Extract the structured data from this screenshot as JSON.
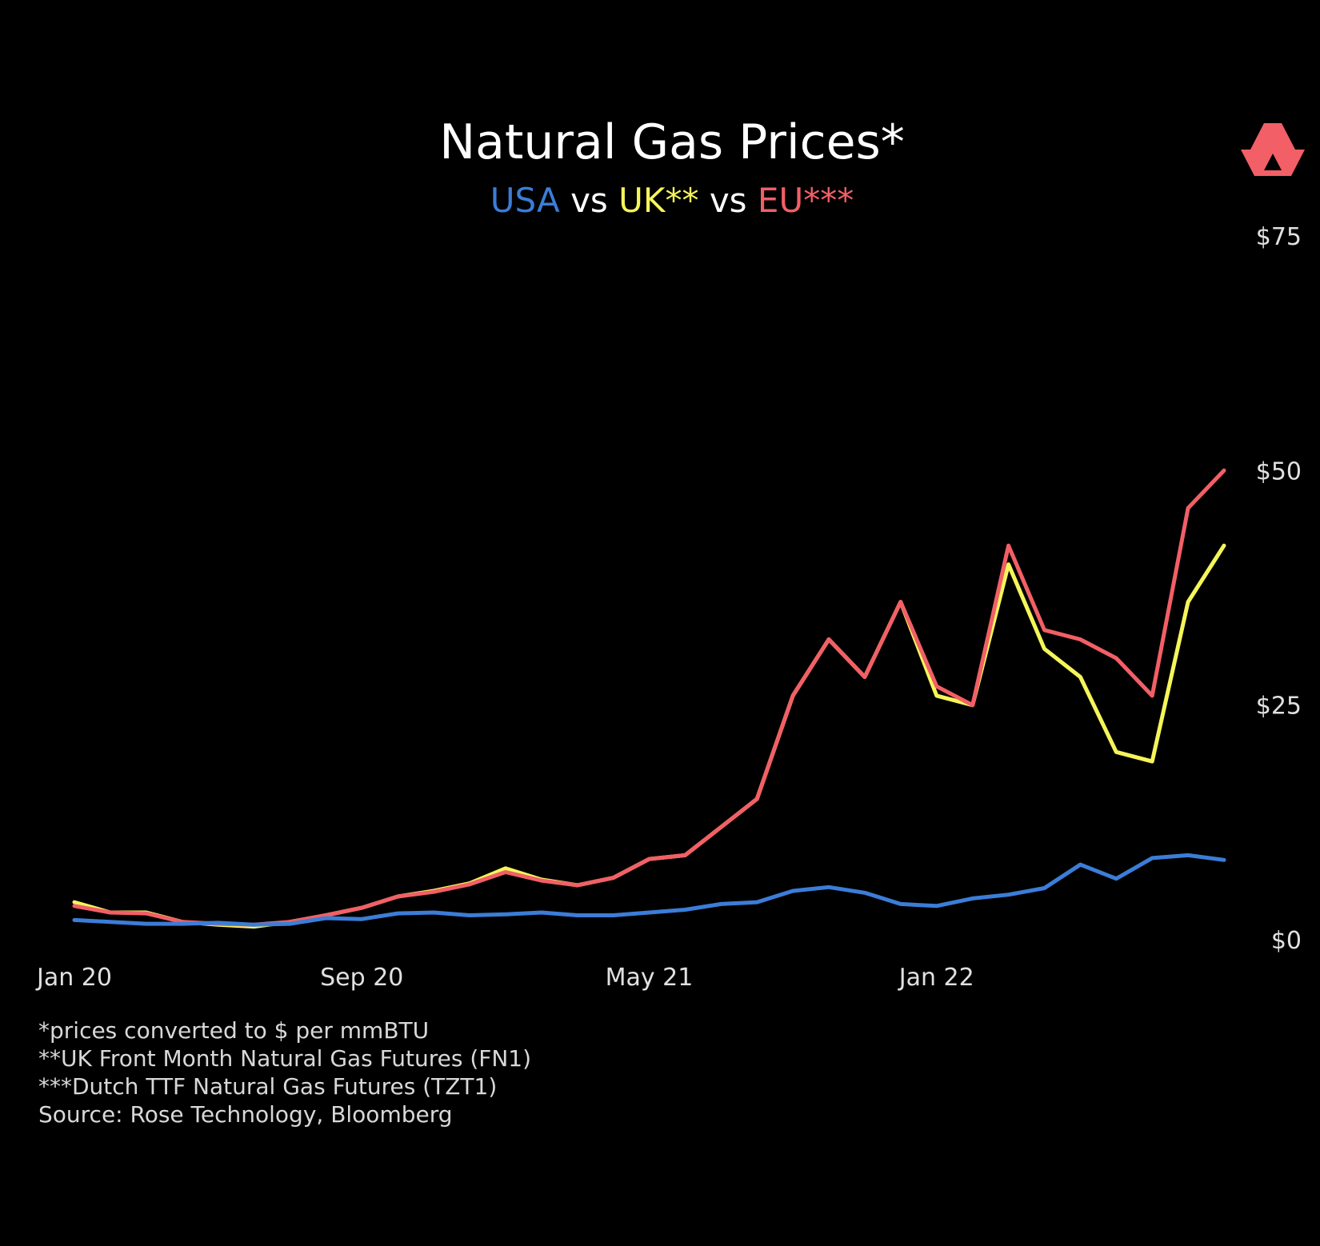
{
  "chart_data": {
    "type": "line",
    "title": "Natural Gas Prices*",
    "subtitle": [
      {
        "text": "USA",
        "color": "#3b7dd8"
      },
      {
        "text": " vs ",
        "color": "#ffffff"
      },
      {
        "text": "UK**",
        "color": "#f5f55a"
      },
      {
        "text": " vs ",
        "color": "#ffffff"
      },
      {
        "text": "EU***",
        "color": "#f25f66"
      }
    ],
    "x_axis": {
      "ticks": [
        "Jan 20",
        "Sep 20",
        "May 21",
        "Jan 22"
      ],
      "range": [
        "2020-01",
        "2022-09"
      ]
    },
    "y_axis": {
      "position": "right",
      "range": [
        0,
        75
      ],
      "ticks": [
        {
          "value": 0,
          "label": "$0"
        },
        {
          "value": 25,
          "label": "$25"
        },
        {
          "value": 50,
          "label": "$50"
        },
        {
          "value": 75,
          "label": "$75"
        }
      ]
    },
    "grid": false,
    "x": [
      "2020-01",
      "2020-02",
      "2020-03",
      "2020-04",
      "2020-05",
      "2020-06",
      "2020-07",
      "2020-08",
      "2020-09",
      "2020-10",
      "2020-11",
      "2020-12",
      "2021-01",
      "2021-02",
      "2021-03",
      "2021-04",
      "2021-05",
      "2021-06",
      "2021-07",
      "2021-08",
      "2021-09",
      "2021-10",
      "2021-11",
      "2021-12",
      "2022-01",
      "2022-02",
      "2022-03",
      "2022-04",
      "2022-05",
      "2022-06",
      "2022-07",
      "2022-08",
      "2022-09"
    ],
    "series": [
      {
        "name": "USA",
        "color": "#3b7dd8",
        "values": [
          2.1,
          1.9,
          1.7,
          1.7,
          1.8,
          1.6,
          1.7,
          2.3,
          2.2,
          2.8,
          2.9,
          2.6,
          2.7,
          2.9,
          2.6,
          2.6,
          2.9,
          3.2,
          3.8,
          4.0,
          5.2,
          5.6,
          5.0,
          3.8,
          3.6,
          4.4,
          4.8,
          5.5,
          8.0,
          6.5,
          8.7,
          9.0,
          8.5
        ]
      },
      {
        "name": "UK**",
        "color": "#f5f55a",
        "values": [
          4.0,
          2.9,
          2.9,
          1.9,
          1.6,
          1.4,
          1.9,
          2.6,
          3.4,
          4.6,
          5.2,
          6.0,
          7.6,
          6.4,
          5.8,
          6.6,
          8.6,
          9.0,
          12.0,
          15.0,
          26.0,
          32.0,
          28.0,
          36.0,
          26.0,
          25.0,
          40.0,
          31.0,
          28.0,
          20.0,
          19.0,
          36.0,
          42.0
        ]
      },
      {
        "name": "EU***",
        "color": "#f25f66",
        "values": [
          3.6,
          2.9,
          2.8,
          1.9,
          1.7,
          1.6,
          1.9,
          2.6,
          3.4,
          4.6,
          5.1,
          5.9,
          7.2,
          6.3,
          5.8,
          6.6,
          8.6,
          9.0,
          12.0,
          15.0,
          26.0,
          32.0,
          28.0,
          36.0,
          27.0,
          25.0,
          42.0,
          33.0,
          32.0,
          30.0,
          26.0,
          46.0,
          50.0
        ]
      }
    ],
    "footnotes": [
      "*prices converted to $ per mmBTU",
      "**UK Front Month Natural Gas Futures (FN1)",
      "***Dutch TTF Natural Gas Futures (TZT1)",
      "Source: Rose Technology, Bloomberg"
    ]
  },
  "logo": {
    "icon": "stacked-triangles-logo-icon",
    "color": "#f25f66"
  }
}
